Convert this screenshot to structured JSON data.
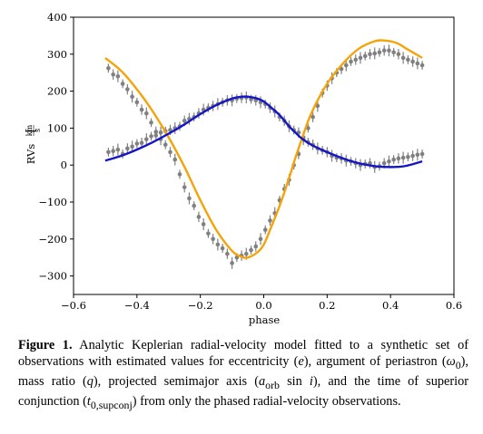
{
  "figure": {
    "caption_label": "Figure 1.",
    "caption_parts": [
      "Analytic Keplerian radial-velocity model fitted to a synthetic set of observations with estimated values for eccentricity (",
      "), argument of periastron (",
      "), mass ratio (",
      "), projected semimajor axis (",
      "), and the time of superior conjunction (",
      ") from only the phased radial-velocity observations."
    ],
    "symbols": {
      "e": "e",
      "omega": "ω",
      "omega_sub": "0",
      "q": "q",
      "a": "a",
      "a_sub": "orb",
      "sin": " sin ",
      "i": "i",
      "t": "t",
      "t_sub": "0,supconj"
    }
  },
  "chart_data": {
    "type": "scatter",
    "xlabel": "phase",
    "ylabel_main": "RVs",
    "ylabel_unit_num": "km",
    "ylabel_unit_den": "s",
    "xlim": [
      -0.6,
      0.6
    ],
    "ylim": [
      -350,
      400
    ],
    "xticks": [
      -0.6,
      -0.4,
      -0.2,
      0.0,
      0.2,
      0.4,
      0.6
    ],
    "xtick_labels": [
      "−0.6",
      "−0.4",
      "−0.2",
      "0.0",
      "0.2",
      "0.4",
      "0.6"
    ],
    "yticks": [
      -300,
      -200,
      -100,
      0,
      100,
      200,
      300,
      400
    ],
    "ytick_labels": [
      "−300",
      "−200",
      "−100",
      "0",
      "100",
      "200",
      "300",
      "400"
    ],
    "grid": false,
    "colors": {
      "primary_model": "#f5a30a",
      "secondary_model": "#1414c8",
      "points": "#808080"
    },
    "series": [
      {
        "style": "model-line",
        "color": "#f5a30a",
        "x": [
          -0.5,
          -0.45,
          -0.4,
          -0.35,
          -0.3,
          -0.25,
          -0.2,
          -0.15,
          -0.1,
          -0.07,
          -0.05,
          -0.02,
          0.0,
          0.02,
          0.05,
          0.08,
          0.1,
          0.12,
          0.15,
          0.2,
          0.25,
          0.3,
          0.35,
          0.38,
          0.42,
          0.45,
          0.5
        ],
        "y": [
          290,
          255,
          205,
          145,
          75,
          -5,
          -95,
          -175,
          -232,
          -248,
          -250,
          -236,
          -215,
          -175,
          -110,
          -35,
          20,
          70,
          140,
          220,
          275,
          315,
          335,
          337,
          330,
          315,
          290
        ]
      },
      {
        "style": "model-line",
        "color": "#1414c8",
        "x": [
          -0.5,
          -0.45,
          -0.4,
          -0.35,
          -0.3,
          -0.25,
          -0.2,
          -0.15,
          -0.1,
          -0.07,
          -0.05,
          -0.02,
          0.0,
          0.02,
          0.05,
          0.08,
          0.1,
          0.12,
          0.15,
          0.2,
          0.25,
          0.3,
          0.35,
          0.38,
          0.42,
          0.45,
          0.5
        ],
        "y": [
          12,
          25,
          42,
          62,
          85,
          110,
          138,
          162,
          180,
          185,
          185,
          180,
          172,
          158,
          135,
          105,
          88,
          72,
          55,
          35,
          18,
          5,
          -3,
          -5,
          -5,
          -2,
          10
        ]
      },
      {
        "style": "points",
        "color": "#808080",
        "x": [
          -0.49,
          -0.475,
          -0.46,
          -0.445,
          -0.43,
          -0.415,
          -0.4,
          -0.385,
          -0.37,
          -0.355,
          -0.34,
          -0.325,
          -0.31,
          -0.295,
          -0.28,
          -0.265,
          -0.25,
          -0.235,
          -0.22,
          -0.205,
          -0.19,
          -0.175,
          -0.16,
          -0.145,
          -0.13,
          -0.115,
          -0.1,
          -0.085,
          -0.07,
          -0.055,
          -0.04,
          -0.025,
          -0.01,
          0.005,
          0.02,
          0.035,
          0.05,
          0.065,
          0.08,
          0.095,
          0.11,
          0.125,
          0.14,
          0.155,
          0.17,
          0.185,
          0.2,
          0.215,
          0.23,
          0.245,
          0.26,
          0.275,
          0.29,
          0.305,
          0.32,
          0.335,
          0.35,
          0.365,
          0.38,
          0.395,
          0.41,
          0.425,
          0.44,
          0.455,
          0.47,
          0.485,
          0.5
        ],
        "y": [
          262,
          245,
          240,
          220,
          205,
          185,
          170,
          150,
          140,
          115,
          90,
          70,
          55,
          35,
          15,
          -25,
          -60,
          -90,
          -110,
          -140,
          -160,
          -185,
          -200,
          -215,
          -225,
          -240,
          -265,
          -250,
          -245,
          -240,
          -230,
          -220,
          -200,
          -175,
          -150,
          -130,
          -95,
          -65,
          -40,
          0,
          30,
          70,
          100,
          130,
          160,
          195,
          215,
          235,
          250,
          260,
          270,
          280,
          285,
          290,
          295,
          300,
          302,
          305,
          310,
          310,
          305,
          300,
          290,
          285,
          280,
          275,
          270
        ]
      },
      {
        "style": "points",
        "color": "#808080",
        "x": [
          -0.49,
          -0.475,
          -0.46,
          -0.445,
          -0.43,
          -0.415,
          -0.4,
          -0.385,
          -0.37,
          -0.355,
          -0.34,
          -0.325,
          -0.31,
          -0.295,
          -0.28,
          -0.265,
          -0.25,
          -0.235,
          -0.22,
          -0.205,
          -0.19,
          -0.175,
          -0.16,
          -0.145,
          -0.13,
          -0.115,
          -0.1,
          -0.085,
          -0.07,
          -0.055,
          -0.04,
          -0.025,
          -0.01,
          0.005,
          0.02,
          0.035,
          0.05,
          0.065,
          0.08,
          0.095,
          0.11,
          0.125,
          0.14,
          0.155,
          0.17,
          0.185,
          0.2,
          0.215,
          0.23,
          0.245,
          0.26,
          0.275,
          0.29,
          0.305,
          0.32,
          0.335,
          0.35,
          0.365,
          0.38,
          0.395,
          0.41,
          0.425,
          0.44,
          0.455,
          0.47,
          0.485,
          0.5
        ],
        "y": [
          35,
          38,
          42,
          30,
          45,
          50,
          58,
          60,
          70,
          78,
          80,
          88,
          92,
          95,
          100,
          105,
          120,
          125,
          130,
          140,
          150,
          155,
          160,
          165,
          170,
          175,
          175,
          180,
          182,
          183,
          178,
          175,
          170,
          165,
          155,
          145,
          130,
          120,
          105,
          95,
          88,
          75,
          62,
          55,
          45,
          40,
          35,
          25,
          20,
          18,
          12,
          10,
          5,
          0,
          3,
          5,
          -5,
          -3,
          5,
          10,
          15,
          18,
          20,
          22,
          25,
          28,
          30
        ]
      }
    ]
  }
}
